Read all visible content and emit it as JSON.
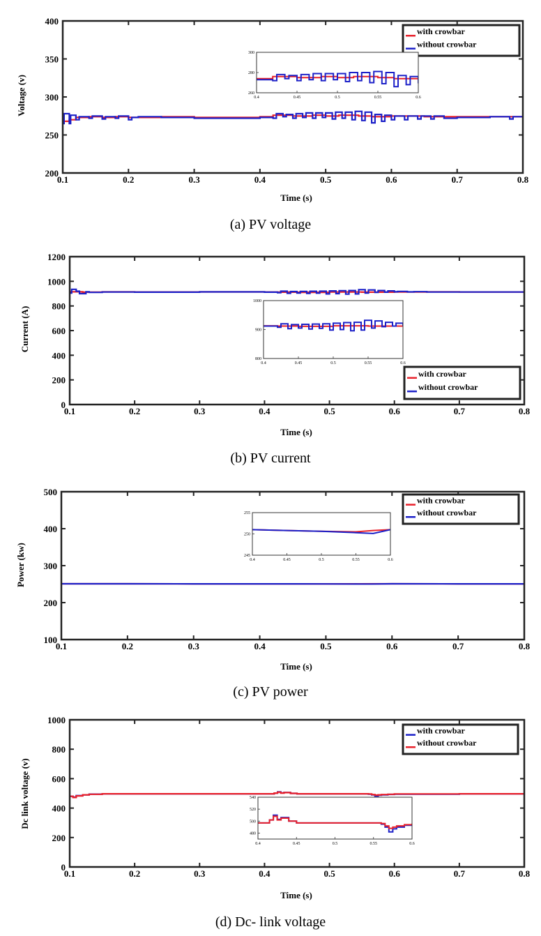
{
  "chart_data": [
    {
      "type": "line",
      "caption": "(a) PV voltage",
      "xlabel": "Time (s)",
      "ylabel": "Voltage (v)",
      "xlim": [
        0.1,
        0.8
      ],
      "ylim": [
        200,
        400
      ],
      "xticks": [
        "0.1",
        "0.2",
        "0.3",
        "0.4",
        "0.5",
        "0.6",
        "0.7",
        "0.8"
      ],
      "yticks": [
        "200",
        "250",
        "300",
        "350",
        "400"
      ],
      "legend_position": "top-right",
      "series": [
        {
          "name": "with crowbar",
          "color": "#e8202a",
          "x": [
            0.1,
            0.11,
            0.12,
            0.14,
            0.16,
            0.18,
            0.2,
            0.25,
            0.3,
            0.35,
            0.4,
            0.42,
            0.45,
            0.48,
            0.5,
            0.52,
            0.55,
            0.57,
            0.6,
            0.65,
            0.7,
            0.75,
            0.8
          ],
          "y": [
            268,
            270,
            273,
            274,
            273,
            274,
            273,
            274,
            273,
            273,
            274,
            276,
            275,
            276,
            275,
            276,
            275,
            274,
            275,
            274,
            274,
            274,
            274
          ]
        },
        {
          "name": "without crowbar",
          "color": "#1c20c8",
          "x": [
            0.1,
            0.102,
            0.11,
            0.112,
            0.12,
            0.125,
            0.14,
            0.145,
            0.16,
            0.165,
            0.18,
            0.185,
            0.2,
            0.205,
            0.215,
            0.25,
            0.3,
            0.35,
            0.4,
            0.42,
            0.425,
            0.435,
            0.44,
            0.45,
            0.455,
            0.465,
            0.47,
            0.48,
            0.485,
            0.495,
            0.5,
            0.51,
            0.515,
            0.525,
            0.53,
            0.54,
            0.545,
            0.555,
            0.56,
            0.57,
            0.575,
            0.585,
            0.59,
            0.6,
            0.605,
            0.62,
            0.625,
            0.64,
            0.645,
            0.66,
            0.665,
            0.68,
            0.7,
            0.75,
            0.78,
            0.785,
            0.8
          ],
          "y": [
            265,
            278,
            265,
            276,
            270,
            274,
            272,
            275,
            271,
            274,
            272,
            275,
            270,
            273,
            274,
            273,
            272,
            272,
            273,
            272,
            278,
            274,
            277,
            272,
            278,
            273,
            279,
            272,
            279,
            273,
            279,
            271,
            280,
            272,
            280,
            270,
            281,
            269,
            280,
            266,
            277,
            268,
            276,
            270,
            275,
            270,
            275,
            271,
            275,
            271,
            275,
            272,
            273,
            274,
            271,
            274,
            273
          ]
        }
      ],
      "inset": {
        "xlim": [
          0.4,
          0.6
        ],
        "ylim": [
          260,
          300
        ],
        "xticks": [
          "0.4",
          "0.45",
          "0.5",
          "0.55",
          "0.6"
        ],
        "yticks": [
          "260",
          "280",
          "300"
        ]
      }
    },
    {
      "type": "line",
      "caption": "(b) PV current",
      "xlabel": "Time (s)",
      "ylabel": "Current (A)",
      "xlim": [
        0.1,
        0.8
      ],
      "ylim": [
        0,
        1200
      ],
      "xticks": [
        "0.1",
        "0.2",
        "0.3",
        "0.4",
        "0.5",
        "0.6",
        "0.7",
        "0.8"
      ],
      "yticks": [
        "0",
        "200",
        "400",
        "600",
        "800",
        "1000",
        "1200"
      ],
      "legend_position": "bottom-right",
      "series": [
        {
          "name": "with crowbar",
          "color": "#e8202a",
          "x": [
            0.1,
            0.12,
            0.15,
            0.2,
            0.3,
            0.4,
            0.42,
            0.45,
            0.5,
            0.55,
            0.6,
            0.65,
            0.7,
            0.8
          ],
          "y": [
            915,
            912,
            914,
            913,
            914,
            913,
            912,
            911,
            913,
            912,
            913,
            914,
            913,
            913
          ]
        },
        {
          "name": "without crowbar",
          "color": "#1c20c8",
          "x": [
            0.1,
            0.103,
            0.11,
            0.115,
            0.125,
            0.13,
            0.15,
            0.2,
            0.3,
            0.4,
            0.42,
            0.425,
            0.435,
            0.44,
            0.45,
            0.455,
            0.465,
            0.47,
            0.48,
            0.485,
            0.495,
            0.5,
            0.51,
            0.515,
            0.525,
            0.53,
            0.54,
            0.545,
            0.555,
            0.56,
            0.57,
            0.575,
            0.585,
            0.59,
            0.6,
            0.605,
            0.62,
            0.63,
            0.65,
            0.7,
            0.8
          ],
          "y": [
            905,
            935,
            920,
            900,
            915,
            910,
            913,
            912,
            914,
            912,
            908,
            920,
            903,
            917,
            905,
            918,
            902,
            919,
            904,
            920,
            898,
            922,
            900,
            924,
            896,
            925,
            898,
            932,
            905,
            930,
            910,
            925,
            912,
            922,
            915,
            918,
            914,
            916,
            913,
            913,
            913
          ]
        }
      ],
      "inset": {
        "xlim": [
          0.4,
          0.6
        ],
        "ylim": [
          800,
          1000
        ],
        "xticks": [
          "0.4",
          "0.45",
          "0.5",
          "0.55",
          "0.6"
        ],
        "yticks": [
          "800",
          "900",
          "1000"
        ]
      }
    },
    {
      "type": "line",
      "caption": "(c) PV power",
      "xlabel": "Time (s)",
      "ylabel": "Power (kw)",
      "xlim": [
        0.1,
        0.8
      ],
      "ylim": [
        100,
        500
      ],
      "xticks": [
        "0.1",
        "0.2",
        "0.3",
        "0.4",
        "0.5",
        "0.6",
        "0.7",
        "0.8"
      ],
      "yticks": [
        "100",
        "200",
        "300",
        "400",
        "500"
      ],
      "legend_position": "top-right",
      "series": [
        {
          "name": "with crowbar",
          "color": "#e8202a",
          "x": [
            0.1,
            0.2,
            0.3,
            0.4,
            0.45,
            0.5,
            0.55,
            0.6,
            0.7,
            0.8
          ],
          "y": [
            251,
            250.9,
            250.8,
            250.8,
            250.7,
            250.6,
            250.7,
            250.9,
            250.8,
            250.8
          ]
        },
        {
          "name": "without crowbar",
          "color": "#1c20c8",
          "x": [
            0.1,
            0.2,
            0.3,
            0.4,
            0.45,
            0.5,
            0.55,
            0.57,
            0.6,
            0.7,
            0.8
          ],
          "y": [
            251,
            250.9,
            250.8,
            250.8,
            250.7,
            250.6,
            250.4,
            250.3,
            250.9,
            250.8,
            250.8
          ]
        }
      ],
      "inset": {
        "xlim": [
          0.4,
          0.6
        ],
        "ylim": [
          245,
          255
        ],
        "xticks": [
          "0.4",
          "0.45",
          "0.5",
          "0.55",
          "0.6"
        ],
        "yticks": [
          "245",
          "250",
          "255"
        ],
        "series": [
          {
            "color": "#e8202a",
            "x": [
              0.4,
              0.45,
              0.5,
              0.55,
              0.575,
              0.6
            ],
            "y": [
              251.0,
              250.8,
              250.6,
              250.5,
              250.8,
              251.0
            ]
          },
          {
            "color": "#1c20c8",
            "x": [
              0.4,
              0.45,
              0.5,
              0.55,
              0.575,
              0.6
            ],
            "y": [
              251.0,
              250.8,
              250.6,
              250.3,
              250.1,
              251.0
            ]
          }
        ]
      }
    },
    {
      "type": "line",
      "caption": "(d) Dc- link voltage",
      "xlabel": "Time (s)",
      "ylabel": "Dc link voltage (v)",
      "xlim": [
        0.1,
        0.8
      ],
      "ylim": [
        0,
        1000
      ],
      "xticks": [
        "0.1",
        "0.2",
        "0.3",
        "0.4",
        "0.5",
        "0.6",
        "0.7",
        "0.8"
      ],
      "yticks": [
        "0",
        "200",
        "400",
        "600",
        "800",
        "1000"
      ],
      "legend_position": "top-right",
      "series": [
        {
          "name": "with crowbar",
          "color": "#1c20c8",
          "x": [
            0.1,
            0.105,
            0.11,
            0.12,
            0.13,
            0.15,
            0.2,
            0.3,
            0.4,
            0.415,
            0.42,
            0.425,
            0.43,
            0.44,
            0.45,
            0.5,
            0.55,
            0.56,
            0.565,
            0.57,
            0.575,
            0.58,
            0.59,
            0.6,
            0.7,
            0.8
          ],
          "y": [
            480,
            475,
            485,
            490,
            495,
            497,
            497,
            497,
            497,
            502,
            510,
            503,
            506,
            500,
            497,
            497,
            497,
            495,
            490,
            482,
            487,
            490,
            493,
            495,
            497,
            497
          ]
        },
        {
          "name": "without crowbar",
          "color": "#e8202a",
          "x": [
            0.1,
            0.105,
            0.11,
            0.12,
            0.13,
            0.15,
            0.2,
            0.3,
            0.4,
            0.415,
            0.42,
            0.425,
            0.43,
            0.44,
            0.45,
            0.5,
            0.55,
            0.56,
            0.565,
            0.57,
            0.575,
            0.58,
            0.59,
            0.6,
            0.7,
            0.8
          ],
          "y": [
            480,
            472,
            483,
            490,
            494,
            497,
            497,
            497,
            497,
            502,
            508,
            502,
            505,
            500,
            497,
            497,
            497,
            496,
            492,
            488,
            490,
            492,
            494,
            496,
            497,
            497
          ]
        }
      ],
      "inset": {
        "xlim": [
          0.4,
          0.6
        ],
        "ylim": [
          470,
          540
        ],
        "xticks": [
          "0.4",
          "0.45",
          "0.5",
          "0.55",
          "0.6"
        ],
        "yticks": [
          "480",
          "500",
          "520",
          "540"
        ]
      }
    }
  ]
}
